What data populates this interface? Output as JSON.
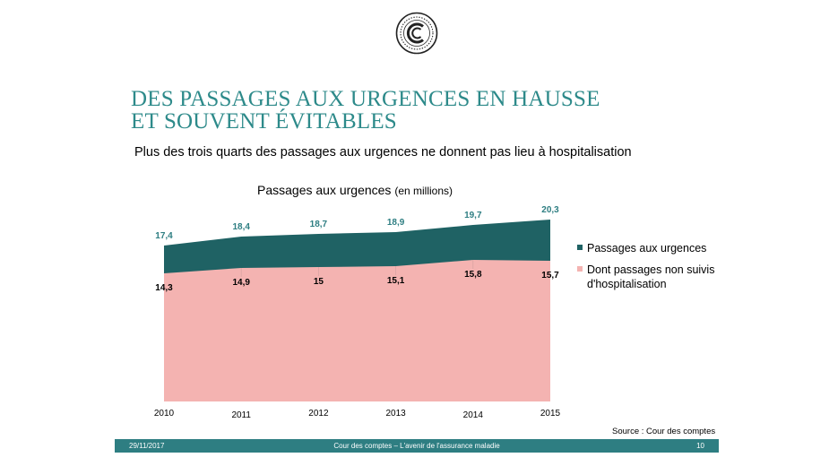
{
  "title_line1": "DES PASSAGES AUX URGENCES EN HAUSSE",
  "title_line2": "ET SOUVENT ÉVITABLES",
  "subtitle": "Plus des trois quarts des passages aux urgences ne donnent pas lieu à hospitalisation",
  "chart_data": {
    "type": "area",
    "title": "Passages aux urgences",
    "title_unit": "(en millions)",
    "x": [
      "2010",
      "2011",
      "2012",
      "2013",
      "2014",
      "2015"
    ],
    "series": [
      {
        "name": "Passages aux urgences",
        "values": [
          17.4,
          18.4,
          18.7,
          18.9,
          19.7,
          20.3
        ],
        "labels": [
          "17,4",
          "18,4",
          "18,7",
          "18,9",
          "19,7",
          "20,3"
        ],
        "color": "#1f6264"
      },
      {
        "name": "Dont passages non suivis d'hospitalisation",
        "values": [
          14.3,
          14.9,
          15,
          15.1,
          15.8,
          15.7
        ],
        "labels": [
          "14,3",
          "14,9",
          "15",
          "15,1",
          "15,8",
          "15,7"
        ],
        "color": "#f4b3b1"
      }
    ],
    "ylim": [
      0,
      21
    ],
    "grid": false,
    "legend_position": "right"
  },
  "source": "Source : Cour des comptes",
  "footer": {
    "date": "29/11/2017",
    "center": "Cour des comptes – L'avenir de l'assurance maladie",
    "page": "10"
  },
  "colors": {
    "title": "#2d8a8a",
    "footer_bg": "#2e7e82",
    "label_top": "#2e7e82"
  }
}
